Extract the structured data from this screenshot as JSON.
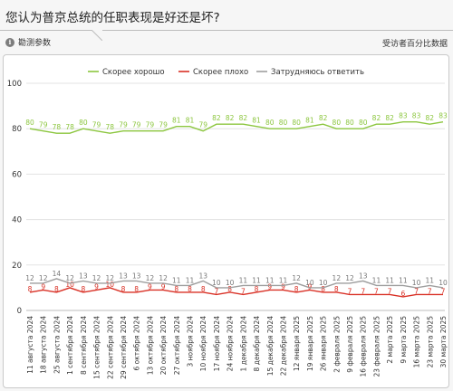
{
  "header": {
    "title": "您认为普京总统的任职表现是好还是坏?",
    "options_label": "勘测参数",
    "unit_label": "受访者百分比数据"
  },
  "colors": {
    "good": "#8cc63f",
    "bad": "#d93025",
    "unsure": "#9e9e9e"
  },
  "chart_data": {
    "type": "line",
    "ylim": [
      0,
      100
    ],
    "yticks": [
      0,
      20,
      40,
      60,
      80,
      100
    ],
    "grid": true,
    "legend_position": "top-center",
    "x": [
      "11 августа 2024",
      "18 августа 2024",
      "25 августа 2024",
      "1 сентября 2024",
      "8 сентября 2024",
      "15 сентября 2024",
      "22 сентября 2024",
      "29 сентября 2024",
      "6 октября 2024",
      "13 октября 2024",
      "20 октября 2024",
      "27 октября 2024",
      "3 ноября 2024",
      "10 ноября 2024",
      "17 ноября 2024",
      "24 ноября 2024",
      "1 декабря 2024",
      "8 декабря 2024",
      "15 декабря 2024",
      "22 декабря 2024",
      "12 января 2025",
      "19 января 2025",
      "26 января 2025",
      "2 февраля 2025",
      "9 февраля 2025",
      "16 февраля 2025",
      "23 февраля 2025",
      "2 марта 2025",
      "9 марта 2025",
      "16 марта 2025",
      "23 марта 2025",
      "30 марта 2025"
    ],
    "series": [
      {
        "name": "Скорее хорошо",
        "color": "#8cc63f",
        "values": [
          80,
          79,
          78,
          78,
          80,
          79,
          78,
          79,
          79,
          79,
          79,
          81,
          81,
          79,
          82,
          82,
          82,
          81,
          80,
          80,
          80,
          81,
          82,
          80,
          80,
          80,
          82,
          82,
          83,
          83,
          82,
          83
        ]
      },
      {
        "name": "Скорее плохо",
        "color": "#d93025",
        "values": [
          8,
          9,
          8,
          10,
          8,
          9,
          10,
          8,
          8,
          9,
          9,
          8,
          8,
          8,
          7,
          8,
          7,
          8,
          9,
          9,
          8,
          9,
          8,
          8,
          7,
          7,
          7,
          7,
          6,
          7,
          7,
          7
        ]
      },
      {
        "name": "Затрудняюсь ответить",
        "color": "#9e9e9e",
        "values": [
          12,
          12,
          14,
          12,
          13,
          12,
          12,
          13,
          13,
          12,
          12,
          11,
          11,
          13,
          10,
          10,
          11,
          11,
          11,
          11,
          12,
          10,
          10,
          12,
          12,
          13,
          11,
          11,
          11,
          10,
          11,
          10
        ]
      }
    ]
  }
}
